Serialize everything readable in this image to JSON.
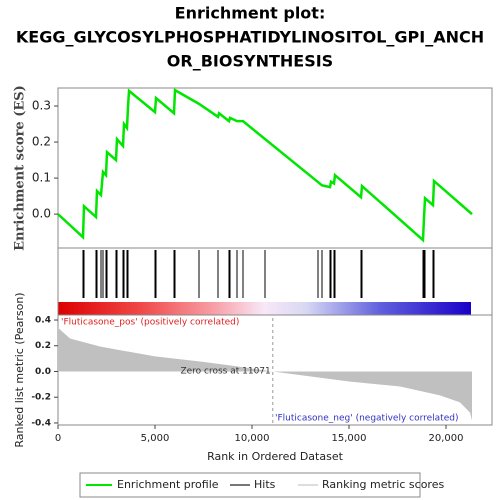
{
  "chart_data": {
    "type": "gsea",
    "title": [
      "Enrichment plot:",
      "KEGG_GLYCOSYLPHOSPHATIDYLINOSITOL_GPI_ANCH",
      "OR_BIOSYNTHESIS"
    ],
    "xlabel": "Rank in Ordered Dataset",
    "xlim": [
      0,
      22371
    ],
    "xticks": [
      0,
      {
        "value": 5000,
        "label": "5,000"
      },
      {
        "value": 10000,
        "label": "10,000"
      },
      {
        "value": 15000,
        "label": "15,000"
      },
      {
        "value": 20000,
        "label": "20,000"
      }
    ],
    "es": {
      "name": "Enrichment profile",
      "ylabel": "Enrichment score (ES)",
      "color": "#00e600",
      "ylim": [
        -0.094,
        0.35
      ],
      "yticks": [
        {
          "value": 0,
          "label": "0.0"
        },
        0.1,
        0.2,
        0.3
      ],
      "x": [
        0,
        1289,
        1340,
        1959,
        2010,
        2216,
        2320,
        2474,
        2526,
        2990,
        3041,
        3351,
        3402,
        3557,
        3608,
        3660,
        5000,
        5052,
        5979,
        6031,
        7268,
        8247,
        8300,
        8814,
        8866,
        9227,
        9536,
        13402,
        13608,
        14021,
        14072,
        14227,
        14278,
        15619,
        15670,
        18814,
        18866,
        18918,
        19330,
        19381,
        21340
      ],
      "values": [
        0,
        -0.064,
        0.022,
        -0.008,
        0.064,
        0.053,
        0.117,
        0.108,
        0.172,
        0.15,
        0.208,
        0.189,
        0.25,
        0.239,
        0.297,
        0.342,
        0.283,
        0.322,
        0.28,
        0.344,
        0.306,
        0.27,
        0.28,
        0.258,
        0.267,
        0.258,
        0.258,
        0.089,
        0.08,
        0.075,
        0.09,
        0.085,
        0.108,
        0.047,
        0.078,
        -0.072,
        -0.011,
        0.044,
        0.025,
        0.092,
        0
      ]
    },
    "hits": {
      "name": "Hits",
      "color": "#000000",
      "x": [
        1289,
        1340,
        1959,
        2010,
        2216,
        2320,
        2474,
        2526,
        2990,
        3041,
        3351,
        3402,
        3557,
        3608,
        5000,
        5052,
        5979,
        6031,
        7268,
        8247,
        8814,
        8866,
        9227,
        9536,
        10670,
        13402,
        13608,
        14021,
        14072,
        14227,
        14278,
        15619,
        15670,
        18814,
        18866,
        18918,
        19330,
        19381
      ]
    },
    "metric": {
      "name": "Ranking metric scores",
      "ylabel": "Ranked list metric (Pearson)",
      "color": "#c0c0c0",
      "ylim": [
        -0.416,
        0.439
      ],
      "yticks": [
        0.4,
        0.2,
        {
          "value": 0,
          "label": "0.0"
        },
        -0.2,
        -0.4
      ],
      "x": [
        0,
        620,
        2165,
        5000,
        7320,
        8866,
        11071,
        15000,
        17630,
        19690,
        20720,
        21240,
        21340
      ],
      "values": [
        0.34,
        0.256,
        0.194,
        0.117,
        0.078,
        0.047,
        0,
        -0.078,
        -0.117,
        -0.186,
        -0.24,
        -0.32,
        -0.38
      ]
    },
    "zero_cross": 11071,
    "annotations": {
      "pos": "'Fluticasone_pos' (positively correlated)",
      "zero": "Zero cross at 11071",
      "neg": "'Fluticasone_neg' (negatively correlated)"
    }
  }
}
